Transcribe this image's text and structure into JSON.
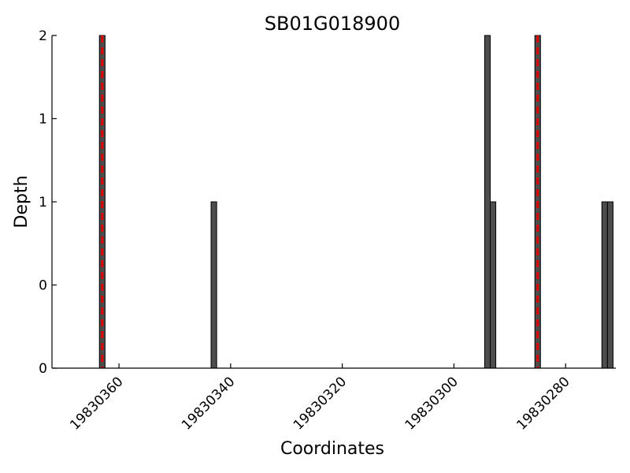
{
  "chart_data": {
    "type": "bar",
    "title": "SB01G018900",
    "xlabel": "Coordinates",
    "ylabel": "Depth",
    "x_reversed": true,
    "xlim": [
      19830372,
      19830271
    ],
    "ylim": [
      0,
      2
    ],
    "x_ticks": [
      19830360,
      19830340,
      19830320,
      19830300,
      19830280
    ],
    "x_tick_labels": [
      "19830360",
      "19830340",
      "19830320",
      "19830300",
      "19830280"
    ],
    "y_ticks": [
      0,
      0.5,
      1,
      1.5,
      2
    ],
    "y_tick_labels": [
      "0",
      "0",
      "1",
      "1",
      "2"
    ],
    "bar_width": 1,
    "bars": [
      {
        "x": 19830363,
        "depth": 2
      },
      {
        "x": 19830343,
        "depth": 1
      },
      {
        "x": 19830294,
        "depth": 2
      },
      {
        "x": 19830293,
        "depth": 1
      },
      {
        "x": 19830285,
        "depth": 2
      },
      {
        "x": 19830273,
        "depth": 1
      },
      {
        "x": 19830272,
        "depth": 1
      }
    ],
    "markers": [
      {
        "x": 19830363,
        "color": "#e00000",
        "style": "dashed"
      },
      {
        "x": 19830285,
        "color": "#e00000",
        "style": "dashed"
      }
    ],
    "bar_color": "#4d4d4d",
    "grid": false,
    "legend": false
  }
}
